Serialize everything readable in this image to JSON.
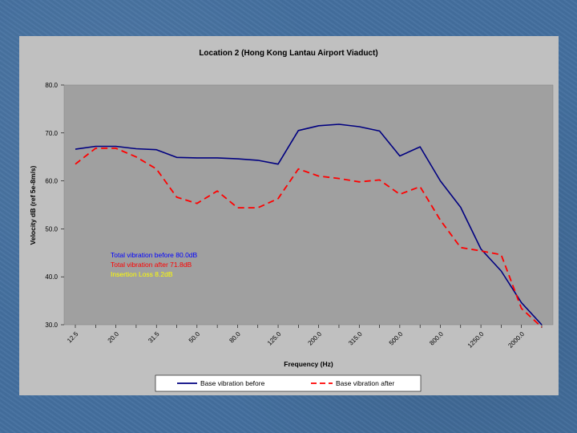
{
  "chart_data": {
    "type": "line",
    "title": "Location 2 (Hong Kong Lantau Airport Viaduct)",
    "xlabel": "Frequency (Hz)",
    "ylabel": "Velocity dB (ref 5e-8m/s)",
    "ylim": [
      30,
      80
    ],
    "yticks": [
      "30.0",
      "40.0",
      "50.0",
      "60.0",
      "70.0",
      "80.0"
    ],
    "ytick_values": [
      30,
      40,
      50,
      60,
      70,
      80
    ],
    "categories": [
      "12.5",
      "16.0",
      "20.0",
      "25.0",
      "31.5",
      "40.0",
      "50.0",
      "63.0",
      "80.0",
      "100.0",
      "125.0",
      "160.0",
      "200.0",
      "250.0",
      "315.0",
      "400.0",
      "500.0",
      "630.0",
      "800.0",
      "1000.0",
      "1250.0",
      "1600.0",
      "2000.0",
      "2500.0"
    ],
    "xtick_labels": [
      "12.5",
      "20.0",
      "31.5",
      "50.0",
      "80.0",
      "125.0",
      "200.0",
      "315.0",
      "500.0",
      "800.0",
      "1250.0",
      "2000.0"
    ],
    "xtick_indices": [
      0,
      2,
      4,
      6,
      8,
      10,
      12,
      14,
      16,
      18,
      20,
      22
    ],
    "series": [
      {
        "name": "Base vibration before",
        "color": "#000080",
        "dash": "solid",
        "values": [
          66.6,
          67.2,
          67.2,
          66.7,
          66.5,
          64.9,
          64.8,
          64.8,
          64.6,
          64.3,
          63.5,
          70.5,
          71.5,
          71.8,
          71.3,
          70.4,
          65.2,
          67.1,
          60.0,
          54.5,
          45.8,
          41.2,
          34.6,
          30.0
        ]
      },
      {
        "name": "Base vibration after",
        "color": "#ff0000",
        "dash": "dashed",
        "values": [
          63.5,
          66.8,
          66.8,
          65.0,
          62.5,
          56.6,
          55.3,
          57.9,
          54.4,
          54.4,
          56.3,
          62.5,
          61.0,
          60.5,
          59.8,
          60.2,
          57.2,
          58.8,
          51.8,
          46.1,
          45.4,
          44.6,
          33.4,
          29.5
        ]
      }
    ],
    "annotations": [
      {
        "text": "Total vibration before 80.0dB",
        "color": "#0000ff"
      },
      {
        "text": "Total vibration after 71.8dB",
        "color": "#ff0000"
      },
      {
        "text": "Insertion Loss 8.2dB",
        "color": "#ffff00"
      }
    ],
    "grid": false,
    "legend_position": "bottom"
  }
}
